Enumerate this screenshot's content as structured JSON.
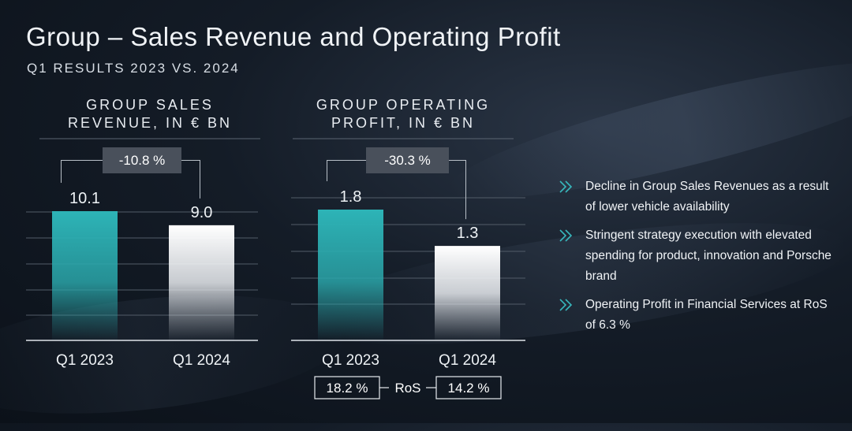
{
  "header": {
    "title": "Group – Sales Revenue and Operating Profit",
    "subtitle": "Q1 RESULTS 2023 VS. 2024"
  },
  "colors": {
    "teal": "#2ab2b5",
    "white_bar": "#ffffff",
    "accent_chevron": "#37b7bc",
    "delta_box": "#49505b"
  },
  "chart_data": [
    {
      "type": "bar",
      "title_lines": [
        "GROUP SALES",
        "REVENUE, IN € BN"
      ],
      "categories": [
        "Q1 2023",
        "Q1 2024"
      ],
      "values": [
        10.1,
        9.0
      ],
      "value_labels": [
        "10.1",
        "9.0"
      ],
      "delta_label": "-10.8 %",
      "grid": true
    },
    {
      "type": "bar",
      "title_lines": [
        "GROUP OPERATING",
        "PROFIT, IN € BN"
      ],
      "categories": [
        "Q1 2023",
        "Q1 2024"
      ],
      "values": [
        1.8,
        1.3
      ],
      "value_labels": [
        "1.8",
        "1.3"
      ],
      "delta_label": "-30.3 %",
      "grid": true,
      "ros": {
        "label": "RoS",
        "values": [
          "18.2 %",
          "14.2 %"
        ]
      }
    }
  ],
  "bullets": [
    {
      "icon": "double-chevron-icon",
      "text": "Decline in Group Sales Revenues as a result of lower vehicle availability"
    },
    {
      "icon": "double-chevron-icon",
      "text": "Stringent strategy execution with elevated spending for product, innovation and Porsche brand"
    },
    {
      "icon": "double-chevron-icon",
      "text": "Operating Profit in Financial Services at RoS of 6.3 %"
    }
  ]
}
